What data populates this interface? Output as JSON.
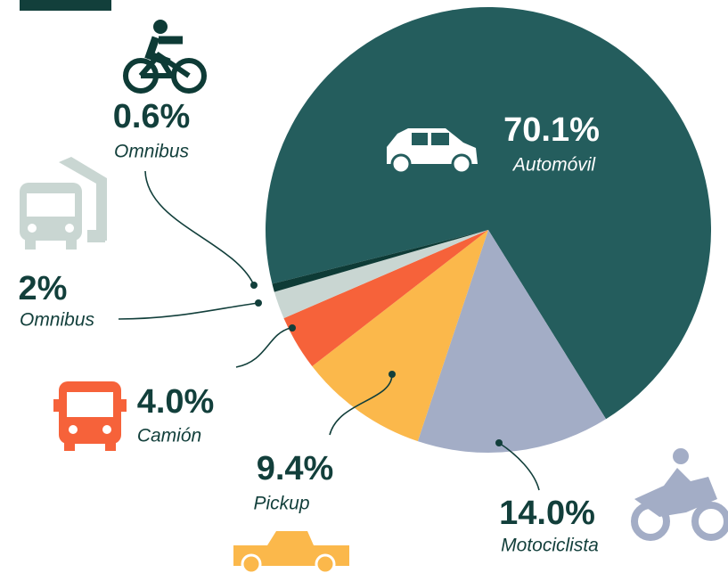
{
  "chart_data": {
    "type": "pie",
    "categories": [
      "Automóvil",
      "Motociclista",
      "Pickup",
      "Camión",
      "Omnibus",
      "Omnibus"
    ],
    "values": [
      70.1,
      14.0,
      9.4,
      4.0,
      2,
      0.6
    ],
    "value_labels": [
      "70.1%",
      "14.0%",
      "9.4%",
      "4.0%",
      "2%",
      "0.6%"
    ],
    "colors": [
      "#245d5d",
      "#a3adc6",
      "#fbb84b",
      "#f6623a",
      "#c9d6d2",
      "#0e3b36"
    ]
  }
}
